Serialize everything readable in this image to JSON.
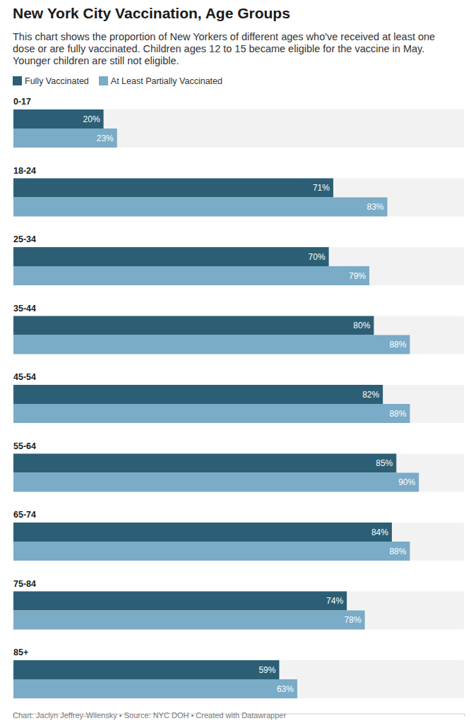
{
  "chart_data": {
    "type": "bar",
    "orientation": "horizontal",
    "title": "New York City Vaccination, Age Groups",
    "subtitle": "This chart shows the proportion of New Yorkers of different ages who've received at least one dose or are fully vaccinated. Children ages 12 to 15 became eligible for the vaccine in May. Younger children are still not eligible.",
    "source": "Chart: Jaclyn Jeffrey-Wilensky • Source: NYC DOH • Created with Datawrapper",
    "categories": [
      "0-17",
      "18-24",
      "25-34",
      "35-44",
      "45-54",
      "55-64",
      "65-74",
      "75-84",
      "85+"
    ],
    "series": [
      {
        "name": "Fully Vaccinated",
        "color": "#2c5f75",
        "values": [
          20,
          71,
          70,
          80,
          82,
          85,
          84,
          74,
          59
        ],
        "value_labels": [
          "20%",
          "71%",
          "70%",
          "80%",
          "82%",
          "85%",
          "84%",
          "74%",
          "59%"
        ]
      },
      {
        "name": "At Least Partially Vaccinated",
        "color": "#7aabc7",
        "values": [
          23,
          83,
          79,
          88,
          88,
          90,
          88,
          78,
          63
        ],
        "value_labels": [
          "23%",
          "83%",
          "79%",
          "88%",
          "88%",
          "90%",
          "88%",
          "78%",
          "63%"
        ]
      }
    ],
    "xlim": [
      0,
      100
    ],
    "xticks": [
      0,
      100
    ],
    "legend": "top-left",
    "data_labels": true,
    "tick_labels": false,
    "grid": false
  }
}
